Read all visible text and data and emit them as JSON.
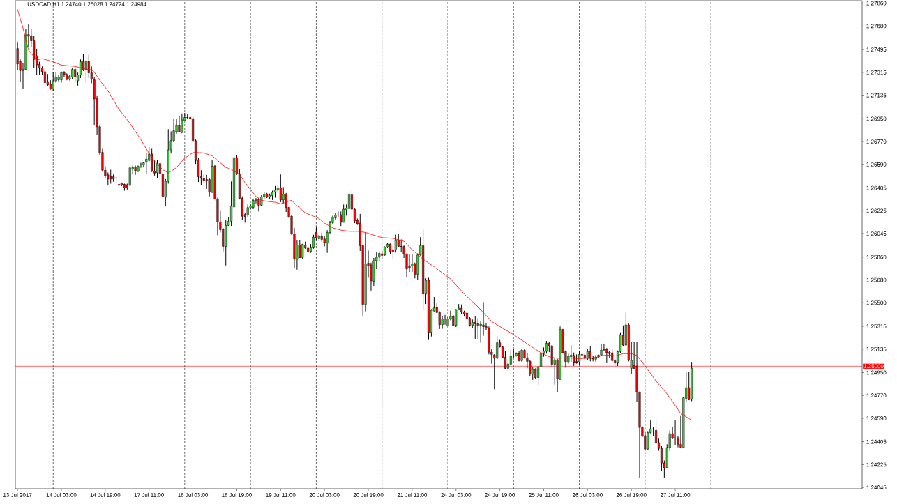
{
  "chart_data": {
    "type": "candlestick",
    "title": "USDCAD,H1 1.24740 1.25028 1.24724 1.24984",
    "categories": [
      "13 Jul 2017",
      null,
      null,
      null,
      null,
      null,
      null,
      null,
      null,
      null,
      null,
      null,
      null,
      null,
      null,
      null,
      "14 Jul 03:00",
      null,
      null,
      null,
      null,
      null,
      null,
      null,
      null,
      null,
      null,
      null,
      null,
      null,
      null,
      null,
      "14 Jul 19:00",
      null,
      null,
      null,
      null,
      null,
      null,
      null,
      null,
      null,
      null,
      null,
      null,
      null,
      null,
      null,
      "17 Jul 11:00",
      null,
      null,
      null,
      null,
      null,
      null,
      null,
      null,
      null,
      null,
      null,
      null,
      null,
      null,
      null,
      "18 Jul 03:00",
      null,
      null,
      null,
      null,
      null,
      null,
      null,
      null,
      null,
      null,
      null,
      null,
      null,
      null,
      null,
      "18 Jul 19:00",
      null,
      null,
      null,
      null,
      null,
      null,
      null,
      null,
      null,
      null,
      null,
      null,
      null,
      null,
      null,
      "19 Jul 11:00",
      null,
      null,
      null,
      null,
      null,
      null,
      null,
      null,
      null,
      null,
      null,
      null,
      null,
      null,
      null,
      "20 Jul 03:00",
      null,
      null,
      null,
      null,
      null,
      null,
      null,
      null,
      null,
      null,
      null,
      null,
      null,
      null,
      null,
      "20 Jul 19:00",
      null,
      null,
      null,
      null,
      null,
      null,
      null,
      null,
      null,
      null,
      null,
      null,
      null,
      null,
      null,
      "21 Jul 11:00",
      null,
      null,
      null,
      null,
      null,
      null,
      null,
      null,
      null,
      null,
      null,
      null,
      null,
      null,
      null,
      "24 Jul 03:00",
      null,
      null,
      null,
      null,
      null,
      null,
      null,
      null,
      null,
      null,
      null,
      null,
      null,
      null,
      null,
      "24 Jul 19:00",
      null,
      null,
      null,
      null,
      null,
      null,
      null,
      null,
      null,
      null,
      null,
      null,
      null,
      null,
      null,
      "25 Jul 11:00",
      null,
      null,
      null,
      null,
      null,
      null,
      null,
      null,
      null,
      null,
      null,
      null,
      null,
      null,
      null,
      "26 Jul 03:00",
      null,
      null,
      null,
      null,
      null,
      null,
      null,
      null,
      null,
      null,
      null,
      null,
      null,
      null,
      null,
      "26 Jul 19:00",
      null,
      null,
      null,
      null,
      null,
      null,
      null,
      null,
      null,
      null,
      null,
      null,
      null,
      null,
      null,
      "27 Jul 11:00",
      null,
      null,
      null,
      null,
      null,
      null,
      null,
      null,
      null,
      null,
      null,
      null,
      null,
      null,
      null,
      null,
      null,
      null,
      null,
      null,
      null,
      null,
      null,
      null,
      null,
      null,
      null,
      null,
      null,
      null,
      null,
      null,
      null,
      null,
      null,
      null,
      null,
      null,
      null,
      null,
      null,
      null,
      null,
      null,
      null,
      null,
      null,
      null,
      null,
      null,
      null,
      null,
      null,
      null,
      null,
      null,
      null,
      null,
      null,
      null,
      null,
      null,
      null,
      null,
      null,
      null,
      null,
      null
    ],
    "ohlc": [
      [
        1.27503,
        1.27555,
        1.27335,
        1.27381
      ],
      [
        1.27404,
        1.27417,
        1.2724,
        1.27329
      ],
      [
        1.27329,
        1.2739,
        1.27188,
        1.2734
      ],
      [
        1.27338,
        1.27655,
        1.27335,
        1.27609
      ],
      [
        1.27613,
        1.27692,
        1.27518,
        1.276
      ],
      [
        1.27604,
        1.27655,
        1.27518,
        1.27564
      ],
      [
        1.27564,
        1.276,
        1.27353,
        1.27417
      ],
      [
        1.27445,
        1.275,
        1.27298,
        1.27375
      ],
      [
        1.27379,
        1.27399,
        1.27298,
        1.27348
      ],
      [
        1.2735,
        1.27362,
        1.27298,
        1.2732
      ],
      [
        1.2732,
        1.27335,
        1.27225,
        1.27234
      ],
      [
        1.27243,
        1.27302,
        1.27207,
        1.27216
      ],
      [
        1.27221,
        1.27253,
        1.27179,
        1.27185
      ],
      [
        1.27185,
        1.27317,
        1.2717,
        1.27247
      ],
      [
        1.27247,
        1.27317,
        1.27234,
        1.2728
      ],
      [
        1.27256,
        1.27298,
        1.27243,
        1.2728
      ],
      [
        1.27256,
        1.27322,
        1.27234,
        1.27313
      ],
      [
        1.27313,
        1.27324,
        1.2728,
        1.27298
      ],
      [
        1.27298,
        1.27307,
        1.27253,
        1.27262
      ],
      [
        1.27262,
        1.27295,
        1.27251,
        1.27284
      ],
      [
        1.2728,
        1.27353,
        1.27262,
        1.27339
      ],
      [
        1.27339,
        1.27353,
        1.27243,
        1.27278
      ],
      [
        1.27249,
        1.27313,
        1.27211,
        1.27295
      ],
      [
        1.27295,
        1.27417,
        1.27271,
        1.27399
      ],
      [
        1.27399,
        1.27459,
        1.27326,
        1.27335
      ],
      [
        1.27335,
        1.27417,
        1.27234,
        1.27404
      ],
      [
        1.27404,
        1.27454,
        1.27271,
        1.27311
      ],
      [
        1.27311,
        1.27362,
        1.27229,
        1.27262
      ],
      [
        1.27256,
        1.2728,
        1.26896,
        1.27106
      ],
      [
        1.27112,
        1.27134,
        1.26823,
        1.26887
      ],
      [
        1.26887,
        1.26896,
        1.26662,
        1.2668
      ],
      [
        1.26685,
        1.26713,
        1.26533,
        1.26544
      ],
      [
        1.26544,
        1.26575,
        1.26484,
        1.26502
      ],
      [
        1.26508,
        1.26526,
        1.26424,
        1.26475
      ],
      [
        1.26493,
        1.26548,
        1.26438,
        1.26475
      ],
      [
        1.26493,
        1.26511,
        1.26453,
        1.26475
      ],
      [
        1.26484,
        1.26502,
        1.26447,
        1.26482
      ],
      [
        1.26433,
        1.26521,
        1.26383,
        1.26425
      ],
      [
        1.26444,
        1.26447,
        1.2642,
        1.26429
      ],
      [
        1.26433,
        1.26438,
        1.26383,
        1.26405
      ],
      [
        1.26429,
        1.26438,
        1.26392,
        1.26405
      ],
      [
        1.26425,
        1.26574,
        1.2642,
        1.26563
      ],
      [
        1.26552,
        1.26581,
        1.26511,
        1.26566
      ],
      [
        1.2657,
        1.26581,
        1.26508,
        1.26539
      ],
      [
        1.26537,
        1.26581,
        1.2653,
        1.26574
      ],
      [
        1.2657,
        1.26603,
        1.26563,
        1.26588
      ],
      [
        1.26585,
        1.26612,
        1.26566,
        1.26603
      ],
      [
        1.26607,
        1.26676,
        1.26511,
        1.26632
      ],
      [
        1.26621,
        1.26727,
        1.26612,
        1.26672
      ],
      [
        1.26672,
        1.26713,
        1.2653,
        1.26537
      ],
      [
        1.26537,
        1.26621,
        1.26502,
        1.26522
      ],
      [
        1.26524,
        1.26625,
        1.26484,
        1.26597
      ],
      [
        1.26597,
        1.2663,
        1.26466,
        1.26515
      ],
      [
        1.26515,
        1.26521,
        1.26332,
        1.26338
      ],
      [
        1.26332,
        1.26475,
        1.26259,
        1.26457
      ],
      [
        1.26457,
        1.26868,
        1.26438,
        1.26704
      ],
      [
        1.26704,
        1.2685,
        1.26676,
        1.26777
      ],
      [
        1.26777,
        1.26951,
        1.26768,
        1.26855
      ],
      [
        1.26848,
        1.26951,
        1.26832,
        1.26896
      ],
      [
        1.26896,
        1.26969,
        1.26841,
        1.26845
      ],
      [
        1.26845,
        1.26991,
        1.26835,
        1.2694
      ],
      [
        1.26936,
        1.26996,
        1.26932,
        1.2696
      ],
      [
        1.2696,
        1.26987,
        1.26951,
        1.26958
      ],
      [
        1.2696,
        1.26969,
        1.26947,
        1.26951
      ],
      [
        1.26951,
        1.26969,
        1.26768,
        1.26777
      ],
      [
        1.26777,
        1.26786,
        1.26594,
        1.26621
      ],
      [
        1.26625,
        1.2664,
        1.26451,
        1.26493
      ],
      [
        1.26493,
        1.26544,
        1.26429,
        1.2648
      ],
      [
        1.26482,
        1.26511,
        1.26447,
        1.26464
      ],
      [
        1.26471,
        1.26508,
        1.26398,
        1.26464
      ],
      [
        1.26471,
        1.26484,
        1.26338,
        1.26371
      ],
      [
        1.26371,
        1.26625,
        1.26365,
        1.26576
      ],
      [
        1.26576,
        1.26585,
        1.26314,
        1.26317
      ],
      [
        1.26317,
        1.26328,
        1.26032,
        1.26136
      ],
      [
        1.26136,
        1.26228,
        1.26054,
        1.26076
      ],
      [
        1.26078,
        1.2609,
        1.25904,
        1.25944
      ],
      [
        1.25944,
        1.26155,
        1.25794,
        1.26109
      ],
      [
        1.26109,
        1.26173,
        1.26105,
        1.26142
      ],
      [
        1.26142,
        1.26456,
        1.26105,
        1.26264
      ],
      [
        1.26255,
        1.26725,
        1.26222,
        1.26643
      ],
      [
        1.26643,
        1.26663,
        1.26508,
        1.26515
      ],
      [
        1.26515,
        1.26555,
        1.26314,
        1.26323
      ],
      [
        1.26323,
        1.26338,
        1.26151,
        1.26182
      ],
      [
        1.26195,
        1.26209,
        1.26131,
        1.2618
      ],
      [
        1.26191,
        1.26274,
        1.26178,
        1.2625
      ],
      [
        1.26246,
        1.26274,
        1.26237,
        1.26263
      ],
      [
        1.26252,
        1.26317,
        1.26237,
        1.26306
      ],
      [
        1.26306,
        1.26325,
        1.26283,
        1.26314
      ],
      [
        1.26314,
        1.26328,
        1.26219,
        1.26268
      ],
      [
        1.26268,
        1.26347,
        1.26264,
        1.26334
      ],
      [
        1.26334,
        1.26374,
        1.26314,
        1.26356
      ],
      [
        1.26356,
        1.26365,
        1.26325,
        1.26334
      ],
      [
        1.26334,
        1.2636,
        1.26314,
        1.26347
      ],
      [
        1.26343,
        1.26383,
        1.2631,
        1.26371
      ],
      [
        1.26371,
        1.2642,
        1.26328,
        1.26389
      ],
      [
        1.26387,
        1.26429,
        1.26365,
        1.26405
      ],
      [
        1.26405,
        1.26511,
        1.26292,
        1.2631
      ],
      [
        1.2631,
        1.26411,
        1.26283,
        1.26356
      ],
      [
        1.26356,
        1.26365,
        1.26215,
        1.2625
      ],
      [
        1.26252,
        1.26255,
        1.26169,
        1.26178
      ],
      [
        1.26182,
        1.26188,
        1.26036,
        1.26041
      ],
      [
        1.26041,
        1.2609,
        1.25776,
        1.25843
      ],
      [
        1.25843,
        1.2599,
        1.25761,
        1.25955
      ],
      [
        1.25955,
        1.25994,
        1.25853,
        1.25856
      ],
      [
        1.25856,
        1.25964,
        1.25843,
        1.25961
      ],
      [
        1.25955,
        1.25981,
        1.25926,
        1.2593
      ],
      [
        1.2593,
        1.25944,
        1.25889,
        1.25904
      ],
      [
        1.25904,
        1.25962,
        1.25893,
        1.25933
      ],
      [
        1.25933,
        1.26036,
        1.25926,
        1.26017
      ],
      [
        1.26054,
        1.261,
        1.25988,
        1.2601
      ],
      [
        1.26005,
        1.26036,
        1.25986,
        1.26028
      ],
      [
        1.26028,
        1.26054,
        1.25981,
        1.25999
      ],
      [
        1.26003,
        1.26023,
        1.25944,
        1.25973
      ],
      [
        1.25972,
        1.26072,
        1.25893,
        1.26054
      ],
      [
        1.26054,
        1.26145,
        1.26045,
        1.26131
      ],
      [
        1.26131,
        1.26186,
        1.26118,
        1.26173
      ],
      [
        1.26169,
        1.26208,
        1.26156,
        1.26193
      ],
      [
        1.26193,
        1.26219,
        1.26176,
        1.26191
      ],
      [
        1.26193,
        1.26219,
        1.26105,
        1.26134
      ],
      [
        1.26134,
        1.26274,
        1.26132,
        1.26237
      ],
      [
        1.26233,
        1.26274,
        1.26186,
        1.26246
      ],
      [
        1.26241,
        1.26387,
        1.26215,
        1.26356
      ],
      [
        1.2635,
        1.26387,
        1.26178,
        1.26237
      ],
      [
        1.26237,
        1.26242,
        1.26127,
        1.26145
      ],
      [
        1.26149,
        1.26164,
        1.26113,
        1.26123
      ],
      [
        1.26127,
        1.262,
        1.25908,
        1.2595
      ],
      [
        1.2595,
        1.25953,
        1.25395,
        1.25487
      ],
      [
        1.25487,
        1.26054,
        1.25432,
        1.25807
      ],
      [
        1.25812,
        1.25911,
        1.25697,
        1.25794
      ],
      [
        1.25798,
        1.25816,
        1.25596,
        1.25673
      ],
      [
        1.2567,
        1.25853,
        1.25633,
        1.25831
      ],
      [
        1.25831,
        1.25898,
        1.25765,
        1.25858
      ],
      [
        1.25858,
        1.25898,
        1.25825,
        1.25889
      ],
      [
        1.25886,
        1.25908,
        1.25843,
        1.25873
      ],
      [
        1.25876,
        1.25944,
        1.25871,
        1.25939
      ],
      [
        1.25939,
        1.25972,
        1.2593,
        1.25962
      ],
      [
        1.25962,
        1.25966,
        1.25886,
        1.25904
      ],
      [
        1.25917,
        1.25935,
        1.25843,
        1.25904
      ],
      [
        1.25915,
        1.26036,
        1.25895,
        1.2599
      ],
      [
        1.25994,
        1.26045,
        1.2594,
        1.25944
      ],
      [
        1.25944,
        1.25999,
        1.25898,
        1.25942
      ],
      [
        1.25944,
        1.2595,
        1.25853,
        1.25884
      ],
      [
        1.25884,
        1.25889,
        1.25703,
        1.25767
      ],
      [
        1.25792,
        1.2588,
        1.25743,
        1.25774
      ],
      [
        1.25789,
        1.25886,
        1.25743,
        1.25807
      ],
      [
        1.25807,
        1.25816,
        1.25692,
        1.25725
      ],
      [
        1.25725,
        1.25889,
        1.25679,
        1.25876
      ],
      [
        1.25876,
        1.26017,
        1.25871,
        1.2595
      ],
      [
        1.2595,
        1.26076,
        1.25441,
        1.25569
      ],
      [
        1.25569,
        1.25692,
        1.2549,
        1.25677
      ],
      [
        1.25677,
        1.25697,
        1.25207,
        1.25267
      ],
      [
        1.25267,
        1.2545,
        1.25234,
        1.25441
      ],
      [
        1.25435,
        1.25545,
        1.25432,
        1.25459
      ],
      [
        1.25463,
        1.25496,
        1.25419,
        1.25423
      ],
      [
        1.25423,
        1.25432,
        1.25293,
        1.25327
      ],
      [
        1.25327,
        1.25395,
        1.25295,
        1.25373
      ],
      [
        1.25373,
        1.25404,
        1.25327,
        1.25371
      ],
      [
        1.25318,
        1.25386,
        1.25313,
        1.25373
      ],
      [
        1.25373,
        1.25437,
        1.25362,
        1.25391
      ],
      [
        1.25391,
        1.25404,
        1.25315,
        1.25318
      ],
      [
        1.25322,
        1.2545,
        1.25309,
        1.25446
      ],
      [
        1.25446,
        1.2549,
        1.25443,
        1.25457
      ],
      [
        1.25457,
        1.25487,
        1.2541,
        1.25428
      ],
      [
        1.25428,
        1.25437,
        1.25391,
        1.25413
      ],
      [
        1.25419,
        1.25423,
        1.25362,
        1.25371
      ],
      [
        1.25377,
        1.25386,
        1.25313,
        1.25322
      ],
      [
        1.25322,
        1.25368,
        1.25304,
        1.25346
      ],
      [
        1.25346,
        1.25395,
        1.25212,
        1.25335
      ],
      [
        1.25335,
        1.25377,
        1.25212,
        1.25322
      ],
      [
        1.25322,
        1.25359,
        1.25185,
        1.25331
      ],
      [
        1.25326,
        1.25505,
        1.2524,
        1.25311
      ],
      [
        1.25313,
        1.2534,
        1.25285,
        1.253
      ],
      [
        1.253,
        1.25313,
        1.25093,
        1.25111
      ],
      [
        1.25111,
        1.25139,
        1.2502,
        1.25093
      ],
      [
        1.2509,
        1.25093,
        1.24819,
        1.25062
      ],
      [
        1.25062,
        1.25234,
        1.25057,
        1.25185
      ],
      [
        1.25185,
        1.25207,
        1.25148,
        1.25152
      ],
      [
        1.25152,
        1.25157,
        1.25066,
        1.25069
      ],
      [
        1.25071,
        1.25117,
        1.24974,
        1.24983
      ],
      [
        1.24983,
        1.25057,
        1.24956,
        1.25018
      ],
      [
        1.25016,
        1.2513,
        1.25011,
        1.25079
      ],
      [
        1.25079,
        1.25139,
        1.25066,
        1.25081
      ],
      [
        1.2508,
        1.25108,
        1.25077,
        1.25099
      ],
      [
        1.25099,
        1.25121,
        1.25038,
        1.25044
      ],
      [
        1.25044,
        1.25135,
        1.25029,
        1.25126
      ],
      [
        1.25126,
        1.25133,
        1.2506,
        1.25066
      ],
      [
        1.25066,
        1.25102,
        1.24983,
        1.25038
      ],
      [
        1.25038,
        1.25047,
        1.24919,
        1.24938
      ],
      [
        1.24938,
        1.24993,
        1.24892,
        1.24974
      ],
      [
        1.24974,
        1.24983,
        1.24901,
        1.2491
      ],
      [
        1.2491,
        1.25002,
        1.2485,
        1.24996
      ],
      [
        1.24996,
        1.25245,
        1.24993,
        1.25099
      ],
      [
        1.25099,
        1.25148,
        1.25075,
        1.25121
      ],
      [
        1.25117,
        1.25199,
        1.25099,
        1.25181
      ],
      [
        1.25181,
        1.25194,
        1.25111,
        1.25161
      ],
      [
        1.25161,
        1.25166,
        1.24993,
        1.25015
      ],
      [
        1.25015,
        1.25066,
        1.24855,
        1.25051
      ],
      [
        1.25051,
        1.25057,
        1.24795,
        1.24901
      ],
      [
        1.24897,
        1.25313,
        1.24892,
        1.25289
      ],
      [
        1.25289,
        1.25294,
        1.25099,
        1.25106
      ],
      [
        1.25115,
        1.25124,
        1.24989,
        1.25033
      ],
      [
        1.25029,
        1.25099,
        1.2502,
        1.25079
      ],
      [
        1.25075,
        1.25166,
        1.25033,
        1.25088
      ],
      [
        1.25084,
        1.25108,
        1.25002,
        1.25025
      ],
      [
        1.25038,
        1.25093,
        1.2502,
        1.25025
      ],
      [
        1.25033,
        1.25121,
        1.25007,
        1.25093
      ],
      [
        1.25093,
        1.25121,
        1.25057,
        1.25088
      ],
      [
        1.25088,
        1.25102,
        1.25051,
        1.25062
      ],
      [
        1.25062,
        1.25133,
        1.25051,
        1.25115
      ],
      [
        1.25115,
        1.25161,
        1.25038,
        1.25062
      ],
      [
        1.25066,
        1.25084,
        1.25038,
        1.25057
      ],
      [
        1.25055,
        1.25088,
        1.25033,
        1.25073
      ],
      [
        1.25073,
        1.25091,
        1.25066,
        1.25088
      ],
      [
        1.25088,
        1.25172,
        1.25084,
        1.25128
      ],
      [
        1.25128,
        1.25176,
        1.25124,
        1.2513
      ],
      [
        1.25133,
        1.25143,
        1.25024,
        1.25106
      ],
      [
        1.2511,
        1.25121,
        1.25066,
        1.25099
      ],
      [
        1.25106,
        1.25135,
        1.25033,
        1.25044
      ],
      [
        1.25044,
        1.25057,
        1.25002,
        1.25025
      ],
      [
        1.25025,
        1.25124,
        1.25002,
        1.25115
      ],
      [
        1.25115,
        1.25267,
        1.25106,
        1.25249
      ],
      [
        1.25243,
        1.25322,
        1.25161,
        1.25166
      ],
      [
        1.25166,
        1.25423,
        1.25157,
        1.25326
      ],
      [
        1.25326,
        1.2534,
        1.25038,
        1.25047
      ],
      [
        1.24983,
        1.25194,
        1.24938,
        1.25047
      ],
      [
        1.25005,
        1.2519,
        1.24974,
        1.24983
      ],
      [
        1.25002,
        1.25194,
        1.24718,
        1.24797
      ],
      [
        1.24797,
        1.248,
        1.24123,
        1.24517
      ],
      [
        1.24517,
        1.24526,
        1.24444,
        1.24447
      ],
      [
        1.24453,
        1.2448,
        1.24334,
        1.24347
      ],
      [
        1.24347,
        1.24489,
        1.24343,
        1.24476
      ],
      [
        1.24476,
        1.24572,
        1.24471,
        1.24506
      ],
      [
        1.24506,
        1.2452,
        1.24447,
        1.24504
      ],
      [
        1.24495,
        1.24572,
        1.24389,
        1.24398
      ],
      [
        1.24398,
        1.24429,
        1.24334,
        1.24352
      ],
      [
        1.24352,
        1.2437,
        1.24173,
        1.24237
      ],
      [
        1.24237,
        1.24257,
        1.24123,
        1.242
      ],
      [
        1.242,
        1.24385,
        1.24196,
        1.24359
      ],
      [
        1.24359,
        1.24495,
        1.2433,
        1.24469
      ],
      [
        1.24469,
        1.2452,
        1.24425,
        1.24433
      ],
      [
        1.24433,
        1.24575,
        1.24379,
        1.24435
      ],
      [
        1.24435,
        1.24453,
        1.24361,
        1.24385
      ],
      [
        1.24385,
        1.24608,
        1.24356,
        1.24361
      ],
      [
        1.24361,
        1.24758,
        1.24358,
        1.24751
      ],
      [
        1.24745,
        1.24952,
        1.24718,
        1.24831
      ],
      [
        1.24831,
        1.24956,
        1.24733,
        1.24736
      ],
      [
        1.2474,
        1.25028,
        1.24724,
        1.24984
      ],
      null,
      null,
      null,
      null,
      null,
      null,
      null,
      null,
      null,
      null,
      null,
      null,
      null,
      null,
      null,
      null,
      null,
      null,
      null,
      null,
      null,
      null,
      null,
      null,
      null,
      null,
      null,
      null,
      null,
      null,
      null,
      null,
      null,
      null,
      null,
      null,
      null,
      null,
      null,
      null,
      null,
      null,
      null,
      null,
      null,
      null,
      null,
      null,
      null,
      null,
      null,
      null,
      null,
      null,
      null,
      null,
      null,
      null,
      null,
      null,
      null,
      null
    ],
    "colors": [
      "#ff0000",
      "#ff0000",
      "#32cd32",
      "#32cd32",
      "#ff0000",
      "#ff0000",
      "#ff0000",
      "#ff0000",
      "#ff0000",
      "#ff0000",
      "#ff0000",
      "#ff0000",
      "#ff0000",
      "#32cd32",
      "#32cd32",
      "#32cd32",
      "#32cd32",
      "#ff0000",
      "#ff0000",
      "#32cd32",
      "#32cd32",
      "#ff0000",
      "#32cd32",
      "#32cd32",
      "#ff0000",
      "#32cd32",
      "#ff0000",
      "#ff0000",
      "#ff0000",
      "#ff0000",
      "#ff0000",
      "#ff0000",
      "#ff0000",
      "#ff0000",
      "#ff0000",
      "#ff0000",
      "#ff0000",
      "#ff0000",
      "#ff0000",
      "#ff0000",
      "#ff0000",
      "#32cd32",
      "#32cd32",
      "#ff0000",
      "#32cd32",
      "#32cd32",
      "#32cd32",
      "#32cd32",
      "#32cd32",
      "#ff0000",
      "#ff0000",
      "#32cd32",
      "#ff0000",
      "#ff0000",
      "#32cd32",
      "#32cd32",
      "#32cd32",
      "#32cd32",
      "#32cd32",
      "#ff0000",
      "#32cd32",
      "#32cd32",
      "#ff0000",
      "#ff0000",
      "#ff0000",
      "#ff0000",
      "#ff0000",
      "#ff0000",
      "#ff0000",
      "#ff0000",
      "#ff0000",
      "#32cd32",
      "#ff0000",
      "#ff0000",
      "#ff0000",
      "#ff0000",
      "#32cd32",
      "#32cd32",
      "#32cd32",
      "#32cd32",
      "#ff0000",
      "#ff0000",
      "#ff0000",
      "#ff0000",
      "#32cd32",
      "#32cd32",
      "#32cd32",
      "#32cd32",
      "#ff0000",
      "#32cd32",
      "#32cd32",
      "#ff0000",
      "#32cd32",
      "#32cd32",
      "#32cd32",
      "#32cd32",
      "#ff0000",
      "#32cd32",
      "#ff0000",
      "#ff0000",
      "#ff0000",
      "#ff0000",
      "#32cd32",
      "#ff0000",
      "#32cd32",
      "#ff0000",
      "#ff0000",
      "#32cd32",
      "#32cd32",
      "#ff0000",
      "#32cd32",
      "#ff0000",
      "#ff0000",
      "#32cd32",
      "#32cd32",
      "#32cd32",
      "#32cd32",
      "#ff0000",
      "#ff0000",
      "#32cd32",
      "#32cd32",
      "#32cd32",
      "#ff0000",
      "#ff0000",
      "#ff0000",
      "#ff0000",
      "#ff0000",
      "#32cd32",
      "#ff0000",
      "#ff0000",
      "#32cd32",
      "#32cd32",
      "#32cd32",
      "#ff0000",
      "#32cd32",
      "#32cd32",
      "#ff0000",
      "#ff0000",
      "#32cd32",
      "#ff0000",
      "#ff0000",
      "#ff0000",
      "#ff0000",
      "#ff0000",
      "#32cd32",
      "#ff0000",
      "#32cd32",
      "#32cd32",
      "#ff0000",
      "#32cd32",
      "#ff0000",
      "#32cd32",
      "#32cd32",
      "#ff0000",
      "#ff0000",
      "#32cd32",
      "#ff0000",
      "#32cd32",
      "#32cd32",
      "#ff0000",
      "#32cd32",
      "#32cd32",
      "#ff0000",
      "#ff0000",
      "#ff0000",
      "#ff0000",
      "#32cd32",
      "#ff0000",
      "#ff0000",
      "#32cd32",
      "#ff0000",
      "#ff0000",
      "#ff0000",
      "#ff0000",
      "#ff0000",
      "#32cd32",
      "#ff0000",
      "#ff0000",
      "#ff0000",
      "#32cd32",
      "#32cd32",
      "#32cd32",
      "#32cd32",
      "#ff0000",
      "#32cd32",
      "#ff0000",
      "#ff0000",
      "#ff0000",
      "#32cd32",
      "#ff0000",
      "#32cd32",
      "#32cd32",
      "#32cd32",
      "#32cd32",
      "#ff0000",
      "#ff0000",
      "#32cd32",
      "#ff0000",
      "#32cd32",
      "#ff0000",
      "#ff0000",
      "#32cd32",
      "#32cd32",
      "#ff0000",
      "#ff0000",
      "#32cd32",
      "#ff0000",
      "#ff0000",
      "#32cd32",
      "#ff0000",
      "#ff0000",
      "#32cd32",
      "#32cd32",
      "#32cd32",
      "#32cd32",
      "#ff0000",
      "#ff0000",
      "#ff0000",
      "#ff0000",
      "#32cd32",
      "#32cd32",
      "#ff0000",
      "#32cd32",
      "#ff0000",
      "#32cd32",
      "#ff0000",
      "#ff0000",
      "#ff0000",
      "#ff0000",
      "#ff0000",
      "#32cd32",
      "#32cd32",
      "#ff0000",
      "#ff0000",
      "#ff0000",
      "#ff0000",
      "#ff0000",
      "#32cd32",
      "#32cd32",
      "#ff0000",
      "#32cd32",
      "#ff0000",
      "#ff0000",
      "#32cd32",
      "#32cd32",
      "#ff0000",
      "#32cd32",
      null,
      null,
      null,
      null,
      null,
      null,
      null,
      null,
      null,
      null,
      null,
      null,
      null,
      null,
      null,
      null,
      null,
      null,
      null,
      null,
      null,
      null,
      null,
      null,
      null,
      null,
      null,
      null,
      null,
      null,
      null,
      null,
      null,
      null,
      null,
      null,
      null,
      null,
      null,
      null,
      null,
      null,
      null,
      null,
      null,
      null,
      null,
      null,
      null,
      null,
      null,
      null,
      null,
      null,
      null,
      null,
      null,
      null,
      null,
      null,
      null,
      null
    ],
    "series": [
      {
        "type": "line",
        "color": "#ff0000",
        "values": [
          1.27811,
          1.27738,
          1.27664,
          1.27577,
          1.2749,
          1.27464,
          1.27438,
          1.27412,
          1.27418,
          1.27423,
          1.27417,
          1.27411,
          1.27405,
          1.27399,
          1.2739,
          1.27381,
          1.27372,
          1.2737,
          1.27368,
          1.27366,
          1.27364,
          1.27362,
          1.27356,
          1.2735,
          1.27344,
          1.27341,
          1.27338,
          1.27335,
          1.27317,
          1.27285,
          1.27253,
          1.27225,
          1.27198,
          1.2717,
          1.27134,
          1.27097,
          1.27061,
          1.27024,
          1.26997,
          1.26969,
          1.26942,
          1.26914,
          1.26882,
          1.2685,
          1.26818,
          1.26786,
          1.26749,
          1.26712,
          1.26676,
          1.26639,
          1.26616,
          1.26594,
          1.26571,
          1.26548,
          1.26535,
          1.26521,
          1.26536,
          1.26551,
          1.26566,
          1.2659,
          1.26615,
          1.26639,
          1.26653,
          1.26668,
          1.26682,
          1.26685,
          1.26683,
          1.26682,
          1.2668,
          1.26673,
          1.26665,
          1.26658,
          1.2664,
          1.26621,
          1.26603,
          1.26584,
          1.26566,
          1.26559,
          1.26551,
          1.26538,
          1.26524,
          1.26511,
          1.26479,
          1.26447,
          1.2642,
          1.26392,
          1.26365,
          1.26337,
          1.26322,
          1.26307,
          1.26303,
          1.263,
          1.26296,
          1.26294,
          1.26292,
          1.26286,
          1.26279,
          1.26286,
          1.26292,
          1.263,
          1.26307,
          1.26286,
          1.26264,
          1.26246,
          1.26227,
          1.26209,
          1.262,
          1.26191,
          1.26182,
          1.26173,
          1.26164,
          1.26146,
          1.26127,
          1.26115,
          1.26102,
          1.2609,
          1.26084,
          1.26078,
          1.26072,
          1.26069,
          1.26066,
          1.26063,
          1.26063,
          1.26063,
          1.26063,
          1.2606,
          1.26057,
          1.26054,
          1.26047,
          1.26039,
          1.26033,
          1.26026,
          1.2602,
          1.26013,
          1.26012,
          1.26011,
          1.26009,
          1.26008,
          1.26002,
          1.25996,
          1.2599,
          1.25984,
          1.25962,
          1.25939,
          1.25917,
          1.25899,
          1.2588,
          1.25862,
          1.25843,
          1.25828,
          1.25813,
          1.25798,
          1.25783,
          1.25767,
          1.25751,
          1.25736,
          1.2572,
          1.25704,
          1.25688,
          1.25664,
          1.2564,
          1.25617,
          1.25593,
          1.25569,
          1.25549,
          1.25529,
          1.25508,
          1.25488,
          1.25468,
          1.25445,
          1.25422,
          1.25399,
          1.25376,
          1.25353,
          1.2534,
          1.25326,
          1.25313,
          1.253,
          1.25287,
          1.25275,
          1.25262,
          1.25249,
          1.25234,
          1.2522,
          1.25205,
          1.25191,
          1.25176,
          1.25162,
          1.25148,
          1.25134,
          1.2512,
          1.25106,
          1.25096,
          1.25085,
          1.25075,
          1.25071,
          1.25066,
          1.25062,
          1.25063,
          1.25065,
          1.25066,
          1.25065,
          1.25064,
          1.25062,
          1.25061,
          1.2506,
          1.25061,
          1.25062,
          1.25063,
          1.25064,
          1.25065,
          1.25066,
          1.25075,
          1.25084,
          1.25085,
          1.25086,
          1.25087,
          1.25088,
          1.25079,
          1.25086,
          1.25092,
          1.25099,
          1.25099,
          1.25099,
          1.25099,
          1.25092,
          1.25084,
          1.25057,
          1.25029,
          1.25002,
          1.24972,
          1.24943,
          1.24913,
          1.24883,
          1.24858,
          1.24833,
          1.24807,
          1.24782,
          1.24751,
          1.24721,
          1.2469,
          1.24659,
          1.24627,
          1.24614,
          1.24601,
          1.24588,
          1.24575,
          null,
          null,
          null,
          null,
          null,
          null,
          null,
          null,
          null,
          null,
          null,
          null,
          null,
          null,
          null,
          null,
          null,
          null,
          null,
          null,
          null,
          null,
          null,
          null,
          null,
          null,
          null,
          null,
          null,
          null,
          null,
          null,
          null,
          null,
          null,
          null,
          null,
          null,
          null,
          null,
          null,
          null,
          null,
          null,
          null,
          null,
          null,
          null,
          null,
          null,
          null,
          null,
          null,
          null,
          null,
          null,
          null,
          null,
          null,
          null,
          null,
          null
        ]
      }
    ],
    "ylim": [
      1.24035,
      1.2788
    ],
    "yticks": [
      {
        "value": 1.2786,
        "label": "1.27860"
      },
      {
        "value": 1.2768,
        "label": "1.27680"
      },
      {
        "value": 1.27495,
        "label": "1.27495"
      },
      {
        "value": 1.27315,
        "label": "1.27315"
      },
      {
        "value": 1.27135,
        "label": "1.27135"
      },
      {
        "value": 1.2695,
        "label": "1.26950"
      },
      {
        "value": 1.2677,
        "label": "1.26770"
      },
      {
        "value": 1.2659,
        "label": "1.26590"
      },
      {
        "value": 1.26405,
        "label": "1.26405"
      },
      {
        "value": 1.26225,
        "label": "1.26225"
      },
      {
        "value": 1.26045,
        "label": "1.26045"
      },
      {
        "value": 1.2586,
        "label": "1.25860"
      },
      {
        "value": 1.2568,
        "label": "1.25680"
      },
      {
        "value": 1.255,
        "label": "1.25500"
      },
      {
        "value": 1.25315,
        "label": "1.25315"
      },
      {
        "value": 1.25135,
        "label": "1.25135"
      },
      {
        "value": 1.2495,
        "label": "1.24950"
      },
      {
        "value": 1.2477,
        "label": "1.24770"
      },
      {
        "value": 1.2459,
        "label": "1.24590"
      },
      {
        "value": 1.24405,
        "label": "1.24405"
      },
      {
        "value": 1.24225,
        "label": "1.24225"
      },
      {
        "value": 1.24045,
        "label": "1.24045"
      }
    ],
    "ref_lines": [
      {
        "axis": "y",
        "value": 1.25,
        "label": "1.25000",
        "color": "#ff0000"
      }
    ]
  }
}
